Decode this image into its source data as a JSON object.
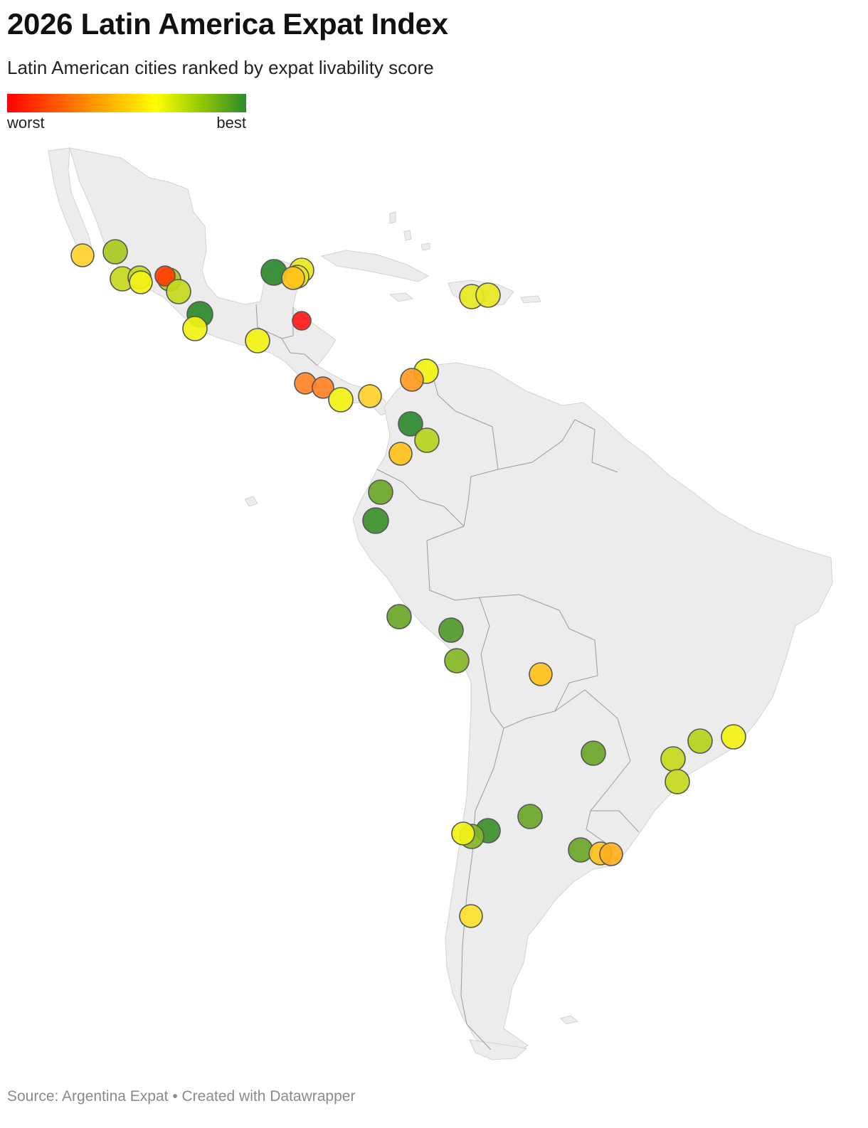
{
  "title": "2026 Latin America Expat Index",
  "subtitle": "Latin American cities ranked by expat livability score",
  "legend": {
    "low_label": "worst",
    "high_label": "best",
    "colors": [
      "#ff0000",
      "#ff7700",
      "#ffcc00",
      "#ffff00",
      "#99cc00",
      "#2d8a2d"
    ]
  },
  "footer": {
    "source": "Source: Argentina Expat • Created with Datawrapper"
  },
  "map": {
    "region": "Latin America",
    "basemap_fill": "#ececec",
    "border_color": "#9a9a9a",
    "marker_count": 47
  }
}
